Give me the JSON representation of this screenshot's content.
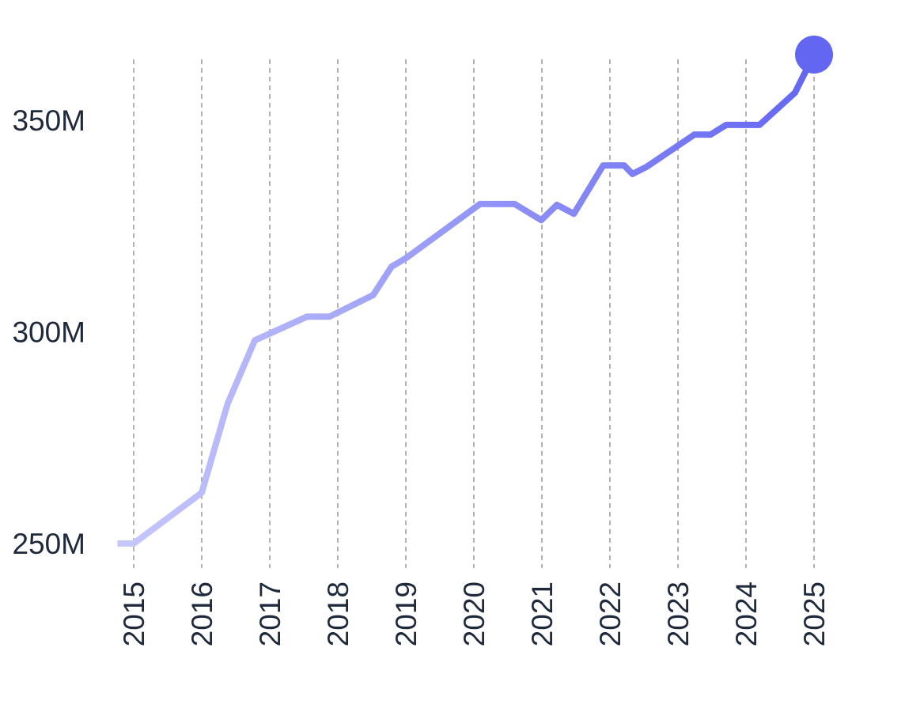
{
  "chart_data": {
    "type": "line",
    "x": [
      2014.76,
      2015,
      2016,
      2016.38,
      2016.78,
      2017.55,
      2017.88,
      2018.52,
      2018.79,
      2019.01,
      2020.09,
      2020.6,
      2020.99,
      2021.22,
      2021.47,
      2021.9,
      2022.21,
      2022.33,
      2022.54,
      2023.24,
      2023.48,
      2023.71,
      2024.2,
      2024.72,
      2025
    ],
    "series": [
      {
        "color": "#6366f1",
        "gradient_from": "#c7c8fb",
        "values": [
          250,
          250,
          262,
          283,
          298,
          303.6,
          303.6,
          308.7,
          315.4,
          317.5,
          330.2,
          330.2,
          326.4,
          330,
          327.9,
          339.3,
          339.3,
          337.3,
          339,
          346.6,
          346.6,
          348.9,
          348.9,
          356.5,
          365.5
        ]
      }
    ],
    "xlim": [
      2014.75,
      2025
    ],
    "ylim": [
      250,
      365.5
    ],
    "xticks": [
      2015,
      2016,
      2017,
      2018,
      2019,
      2020,
      2021,
      2022,
      2023,
      2024,
      2025
    ],
    "yticks": [
      {
        "value": 250,
        "label": "250M"
      },
      {
        "value": 300,
        "label": "300M"
      },
      {
        "value": 350,
        "label": "350M"
      }
    ],
    "grid": "x",
    "end_marker": true
  }
}
